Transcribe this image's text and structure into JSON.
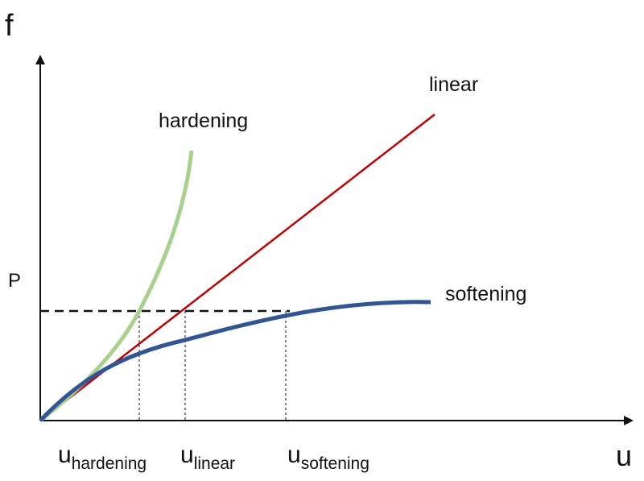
{
  "axes": {
    "y_label": "f",
    "x_label": "u",
    "load_label": "P"
  },
  "curves": [
    {
      "label": "hardening"
    },
    {
      "label": "linear"
    },
    {
      "label": "softening"
    }
  ],
  "displacements": [
    {
      "base": "u",
      "sub": "hardening"
    },
    {
      "base": "u",
      "sub": "linear"
    },
    {
      "base": "u",
      "sub": "softening"
    }
  ]
}
